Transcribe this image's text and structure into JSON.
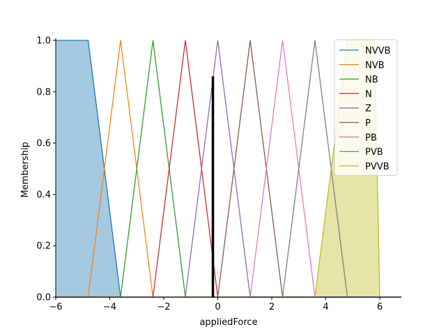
{
  "chart_data": {
    "type": "line",
    "title": "",
    "xlabel": "appliedForce",
    "ylabel": "Membership",
    "xlim": [
      -6,
      6.8
    ],
    "ylim": [
      0,
      1.0
    ],
    "xticks": [
      -6,
      -4,
      -2,
      0,
      2,
      4,
      6
    ],
    "xtick_labels": [
      "−6",
      "−4",
      "−2",
      "0",
      "2",
      "4",
      "6"
    ],
    "yticks": [
      0.0,
      0.2,
      0.4,
      0.6,
      0.8,
      1.0
    ],
    "ytick_labels": [
      "0.0",
      "0.2",
      "0.4",
      "0.6",
      "0.8",
      "1.0"
    ],
    "grid": false,
    "legend_position": "top-right",
    "series": [
      {
        "name": "NVVB",
        "color": "#1f77b4",
        "x": [
          -6,
          -4.8,
          -3.6
        ],
        "y": [
          1,
          1,
          0
        ],
        "filled": true
      },
      {
        "name": "NVB",
        "color": "#ff7f0e",
        "x": [
          -4.8,
          -3.6,
          -2.4
        ],
        "y": [
          0,
          1,
          0
        ]
      },
      {
        "name": "NB",
        "color": "#2ca02c",
        "x": [
          -3.6,
          -2.4,
          -1.2
        ],
        "y": [
          0,
          1,
          0
        ]
      },
      {
        "name": "N",
        "color": "#d62728",
        "x": [
          -2.4,
          -1.2,
          0
        ],
        "y": [
          0,
          1,
          0
        ]
      },
      {
        "name": "Z",
        "color": "#9467bd",
        "x": [
          -1.2,
          0,
          1.2
        ],
        "y": [
          0,
          1,
          0
        ]
      },
      {
        "name": "P",
        "color": "#8c564b",
        "x": [
          0,
          1.2,
          2.4
        ],
        "y": [
          0,
          1,
          0
        ]
      },
      {
        "name": "PB",
        "color": "#e377c2",
        "x": [
          1.2,
          2.4,
          3.6
        ],
        "y": [
          0,
          1,
          0
        ]
      },
      {
        "name": "PVB",
        "color": "#7f7f7f",
        "x": [
          2.4,
          3.6,
          4.8
        ],
        "y": [
          0,
          1,
          0
        ]
      },
      {
        "name": "PVVB",
        "color": "#bcbd22",
        "x": [
          3.6,
          4.8,
          5.8,
          6.0
        ],
        "y": [
          0,
          1,
          1,
          0
        ],
        "filled": true
      }
    ],
    "crisp_input": {
      "x": -0.18,
      "y": 0.86,
      "color": "#000000"
    }
  }
}
